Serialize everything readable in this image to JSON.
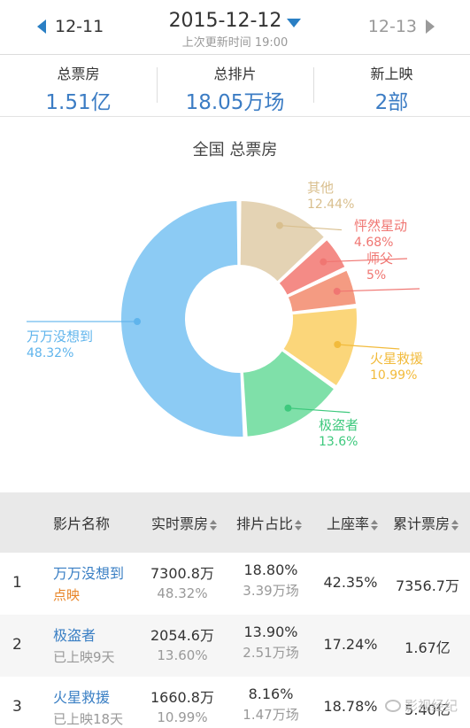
{
  "nav": {
    "prev_date": "12-11",
    "current_date": "2015-12-12",
    "next_date": "12-13",
    "update_time": "上次更新时间 19:00"
  },
  "stats": [
    {
      "label": "总票房",
      "value": "1.51亿"
    },
    {
      "label": "总排片",
      "value": "18.05万场"
    },
    {
      "label": "新上映",
      "value": "2部"
    }
  ],
  "chart_data": {
    "type": "pie",
    "title": "全国 总票房",
    "slices": [
      {
        "name": "万万没想到",
        "label": "48.32%",
        "value": 48.32,
        "color": "#8ccbf4"
      },
      {
        "name": "其他",
        "label": "12.44%",
        "value": 12.44,
        "color": "#e4d3b4"
      },
      {
        "name": "怦然星动",
        "label": "4.68%",
        "value": 4.68,
        "color": "#f48b86"
      },
      {
        "name": "师父",
        "label": "5%",
        "value": 5.0,
        "color": "#f49b82"
      },
      {
        "name": "火星救援",
        "label": "10.99%",
        "value": 10.99,
        "color": "#fbd67a"
      },
      {
        "name": "极盗者",
        "label": "13.6%",
        "value": 13.6,
        "color": "#7fe0a9"
      }
    ],
    "legend_colors": {
      "万万没想到": "#5fb4ec",
      "其他": "#d9bf8e",
      "怦然星动": "#f07672",
      "师父": "#f07672",
      "火星救援": "#f2bb3c",
      "极盗者": "#3ec97d"
    }
  },
  "table": {
    "headers": {
      "name": "影片名称",
      "realtime": "实时票房",
      "ratio": "排片占比",
      "occupancy": "上座率",
      "total": "累计票房"
    },
    "rows": [
      {
        "rank": "1",
        "title": "万万没想到",
        "sub": "点映",
        "realtime": "7300.8万",
        "realtime_pct": "48.32%",
        "ratio": "18.80%",
        "shows": "3.39万场",
        "occupancy": "42.35%",
        "total": "7356.7万"
      },
      {
        "rank": "2",
        "title": "极盗者",
        "sub": "已上映9天",
        "realtime": "2054.6万",
        "realtime_pct": "13.60%",
        "ratio": "13.90%",
        "shows": "2.51万场",
        "occupancy": "17.24%",
        "total": "1.67亿"
      },
      {
        "rank": "3",
        "title": "火星救援",
        "sub": "已上映18天",
        "realtime": "1660.8万",
        "realtime_pct": "10.99%",
        "ratio": "8.16%",
        "shows": "1.47万场",
        "occupancy": "18.78%",
        "total": "5.40亿"
      }
    ]
  },
  "watermark": "影视经纪"
}
